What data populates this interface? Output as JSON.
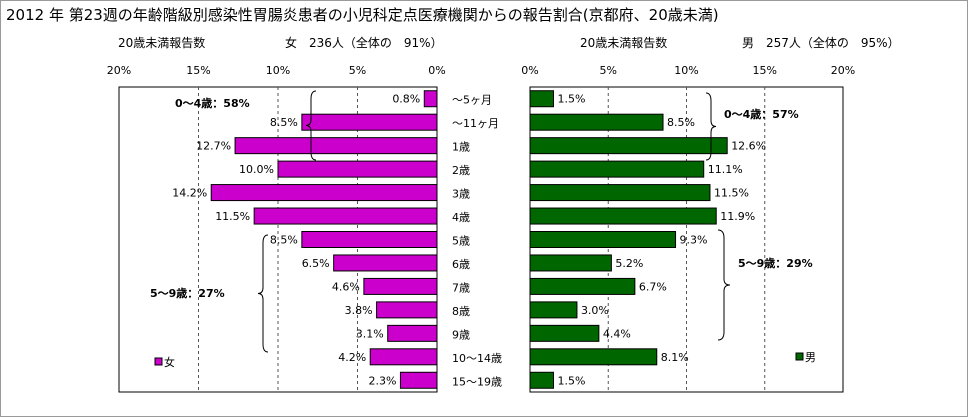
{
  "title": "2012 年 第23週の年齢階級別感染性胃腸炎患者の小児科定点医療機関からの報告割合(京都府、20歳未満)",
  "left_header": {
    "label": "20歳未満報告数",
    "summary": "女　236人（全体の　91%）"
  },
  "right_header": {
    "label": "20歳未満報告数",
    "summary": "男　257人（全体の　95%）"
  },
  "left_legend": "女",
  "right_legend": "男",
  "annotations": {
    "left_top": "0〜4歳：58%",
    "left_mid": "5〜9歳：27%",
    "right_top": "0〜4歳：57%",
    "right_mid": "5〜9歳：29%"
  },
  "colors": {
    "female": "#cc00cc",
    "male": "#006600",
    "grid": "#555555"
  },
  "chart_data": [
    {
      "type": "bar",
      "orientation": "horizontal",
      "direction": "reversed",
      "name": "女",
      "categories": [
        "〜5ヶ月",
        "〜11ヶ月",
        "1歳",
        "2歳",
        "3歳",
        "4歳",
        "5歳",
        "6歳",
        "7歳",
        "8歳",
        "9歳",
        "10〜14歳",
        "15〜19歳"
      ],
      "values": [
        0.8,
        8.5,
        12.7,
        10.0,
        14.2,
        11.5,
        8.5,
        6.5,
        4.6,
        3.8,
        3.1,
        4.2,
        2.3
      ],
      "data_labels": [
        "0.8%",
        "8.5%",
        "12.7%",
        "10.0%",
        "14.2%",
        "11.5%",
        "8.5%",
        "6.5%",
        "4.6%",
        "3.8%",
        "3.1%",
        "4.2%",
        "2.3%"
      ],
      "xlim": [
        0,
        20
      ],
      "x_ticks": [
        "0%",
        "5%",
        "10%",
        "15%",
        "20%"
      ],
      "grid": true,
      "legend": "bottom-left"
    },
    {
      "type": "bar",
      "orientation": "horizontal",
      "name": "男",
      "categories": [
        "〜5ヶ月",
        "〜11ヶ月",
        "1歳",
        "2歳",
        "3歳",
        "4歳",
        "5歳",
        "6歳",
        "7歳",
        "8歳",
        "9歳",
        "10〜14歳",
        "15〜19歳"
      ],
      "values": [
        1.5,
        8.5,
        12.6,
        11.1,
        11.5,
        11.9,
        9.3,
        5.2,
        6.7,
        3.0,
        4.4,
        8.1,
        1.5
      ],
      "data_labels": [
        "1.5%",
        "8.5%",
        "12.6%",
        "11.1%",
        "11.5%",
        "11.9%",
        "9.3%",
        "5.2%",
        "6.7%",
        "3.0%",
        "4.4%",
        "8.1%",
        "1.5%"
      ],
      "xlim": [
        0,
        20
      ],
      "x_ticks": [
        "0%",
        "5%",
        "10%",
        "15%",
        "20%"
      ],
      "grid": true,
      "legend": "bottom-right"
    }
  ]
}
